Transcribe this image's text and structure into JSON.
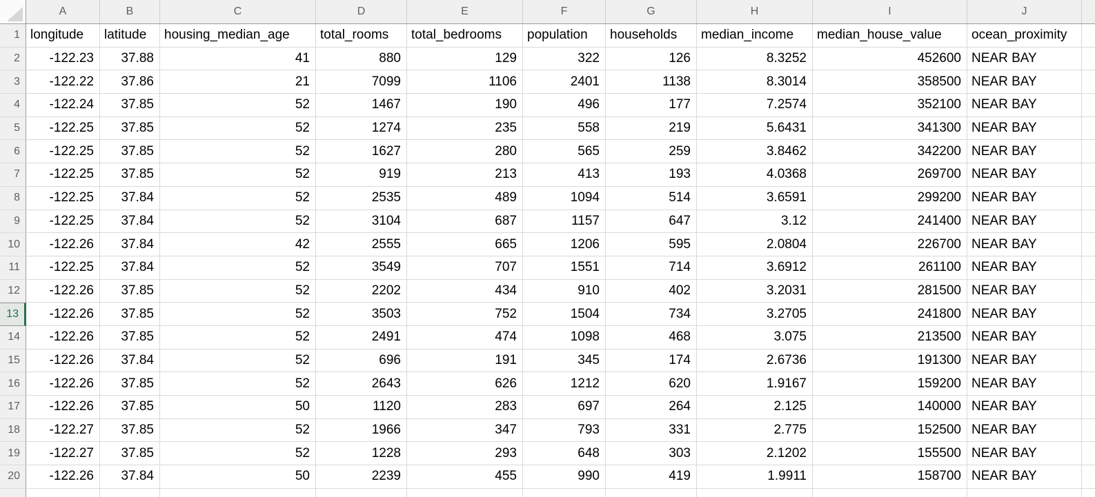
{
  "sheet": {
    "column_letters": [
      "A",
      "B",
      "C",
      "D",
      "E",
      "F",
      "G",
      "H",
      "I",
      "J"
    ],
    "header_row": {
      "row_number": "1",
      "cells": [
        "longitude",
        "latitude",
        "housing_median_age",
        "total_rooms",
        "total_bedrooms",
        "population",
        "households",
        "median_income",
        "median_house_value",
        "ocean_proximity"
      ]
    },
    "data_rows": [
      {
        "row_number": "2",
        "cells": [
          "-122.23",
          "37.88",
          "41",
          "880",
          "129",
          "322",
          "126",
          "8.3252",
          "452600",
          "NEAR BAY"
        ]
      },
      {
        "row_number": "3",
        "cells": [
          "-122.22",
          "37.86",
          "21",
          "7099",
          "1106",
          "2401",
          "1138",
          "8.3014",
          "358500",
          "NEAR BAY"
        ]
      },
      {
        "row_number": "4",
        "cells": [
          "-122.24",
          "37.85",
          "52",
          "1467",
          "190",
          "496",
          "177",
          "7.2574",
          "352100",
          "NEAR BAY"
        ]
      },
      {
        "row_number": "5",
        "cells": [
          "-122.25",
          "37.85",
          "52",
          "1274",
          "235",
          "558",
          "219",
          "5.6431",
          "341300",
          "NEAR BAY"
        ]
      },
      {
        "row_number": "6",
        "cells": [
          "-122.25",
          "37.85",
          "52",
          "1627",
          "280",
          "565",
          "259",
          "3.8462",
          "342200",
          "NEAR BAY"
        ]
      },
      {
        "row_number": "7",
        "cells": [
          "-122.25",
          "37.85",
          "52",
          "919",
          "213",
          "413",
          "193",
          "4.0368",
          "269700",
          "NEAR BAY"
        ]
      },
      {
        "row_number": "8",
        "cells": [
          "-122.25",
          "37.84",
          "52",
          "2535",
          "489",
          "1094",
          "514",
          "3.6591",
          "299200",
          "NEAR BAY"
        ]
      },
      {
        "row_number": "9",
        "cells": [
          "-122.25",
          "37.84",
          "52",
          "3104",
          "687",
          "1157",
          "647",
          "3.12",
          "241400",
          "NEAR BAY"
        ]
      },
      {
        "row_number": "10",
        "cells": [
          "-122.26",
          "37.84",
          "42",
          "2555",
          "665",
          "1206",
          "595",
          "2.0804",
          "226700",
          "NEAR BAY"
        ]
      },
      {
        "row_number": "11",
        "cells": [
          "-122.25",
          "37.84",
          "52",
          "3549",
          "707",
          "1551",
          "714",
          "3.6912",
          "261100",
          "NEAR BAY"
        ]
      },
      {
        "row_number": "12",
        "cells": [
          "-122.26",
          "37.85",
          "52",
          "2202",
          "434",
          "910",
          "402",
          "3.2031",
          "281500",
          "NEAR BAY"
        ]
      },
      {
        "row_number": "13",
        "cells": [
          "-122.26",
          "37.85",
          "52",
          "3503",
          "752",
          "1504",
          "734",
          "3.2705",
          "241800",
          "NEAR BAY"
        ]
      },
      {
        "row_number": "14",
        "cells": [
          "-122.26",
          "37.85",
          "52",
          "2491",
          "474",
          "1098",
          "468",
          "3.075",
          "213500",
          "NEAR BAY"
        ]
      },
      {
        "row_number": "15",
        "cells": [
          "-122.26",
          "37.84",
          "52",
          "696",
          "191",
          "345",
          "174",
          "2.6736",
          "191300",
          "NEAR BAY"
        ]
      },
      {
        "row_number": "16",
        "cells": [
          "-122.26",
          "37.85",
          "52",
          "2643",
          "626",
          "1212",
          "620",
          "1.9167",
          "159200",
          "NEAR BAY"
        ]
      },
      {
        "row_number": "17",
        "cells": [
          "-122.26",
          "37.85",
          "50",
          "1120",
          "283",
          "697",
          "264",
          "2.125",
          "140000",
          "NEAR BAY"
        ]
      },
      {
        "row_number": "18",
        "cells": [
          "-122.27",
          "37.85",
          "52",
          "1966",
          "347",
          "793",
          "331",
          "2.775",
          "152500",
          "NEAR BAY"
        ]
      },
      {
        "row_number": "19",
        "cells": [
          "-122.27",
          "37.85",
          "52",
          "1228",
          "293",
          "648",
          "303",
          "2.1202",
          "155500",
          "NEAR BAY"
        ]
      },
      {
        "row_number": "20",
        "cells": [
          "-122.26",
          "37.84",
          "50",
          "2239",
          "455",
          "990",
          "419",
          "1.9911",
          "158700",
          "NEAR BAY"
        ]
      }
    ],
    "selection": {
      "highlighted_row_header": "13",
      "accent_color": "#217346"
    }
  }
}
